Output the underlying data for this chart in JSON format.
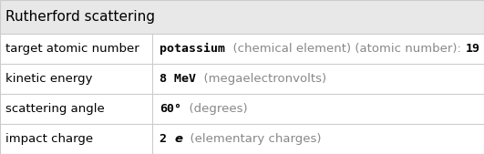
{
  "title": "Rutherford scattering",
  "title_bg": "#e8e8e8",
  "table_bg": "#ffffff",
  "border_color": "#cccccc",
  "rows": [
    {
      "label": "target atomic number",
      "value_parts": [
        {
          "text": "potassium",
          "bold": true,
          "italic": false,
          "color": "#000000",
          "mono": true
        },
        {
          "text": "  (chemical element) (atomic number): ",
          "bold": false,
          "italic": false,
          "color": "#888888",
          "mono": false
        },
        {
          "text": "19",
          "bold": true,
          "italic": false,
          "color": "#000000",
          "mono": true
        }
      ]
    },
    {
      "label": "kinetic energy",
      "value_parts": [
        {
          "text": "8 MeV",
          "bold": true,
          "italic": false,
          "color": "#000000",
          "mono": true
        },
        {
          "text": "  (megaelectronvolts)",
          "bold": false,
          "italic": false,
          "color": "#888888",
          "mono": false
        }
      ]
    },
    {
      "label": "scattering angle",
      "value_parts": [
        {
          "text": "60°",
          "bold": true,
          "italic": false,
          "color": "#000000",
          "mono": true
        },
        {
          "text": "  (degrees)",
          "bold": false,
          "italic": false,
          "color": "#888888",
          "mono": false
        }
      ]
    },
    {
      "label": "impact charge",
      "value_parts": [
        {
          "text": "2 ",
          "bold": true,
          "italic": false,
          "color": "#000000",
          "mono": true
        },
        {
          "text": "e",
          "bold": true,
          "italic": true,
          "color": "#000000",
          "mono": false
        },
        {
          "text": "  (elementary charges)",
          "bold": false,
          "italic": false,
          "color": "#888888",
          "mono": false
        }
      ]
    }
  ],
  "col_split": 0.315,
  "label_fontsize": 9.5,
  "value_fontsize": 9.5,
  "title_fontsize": 11
}
